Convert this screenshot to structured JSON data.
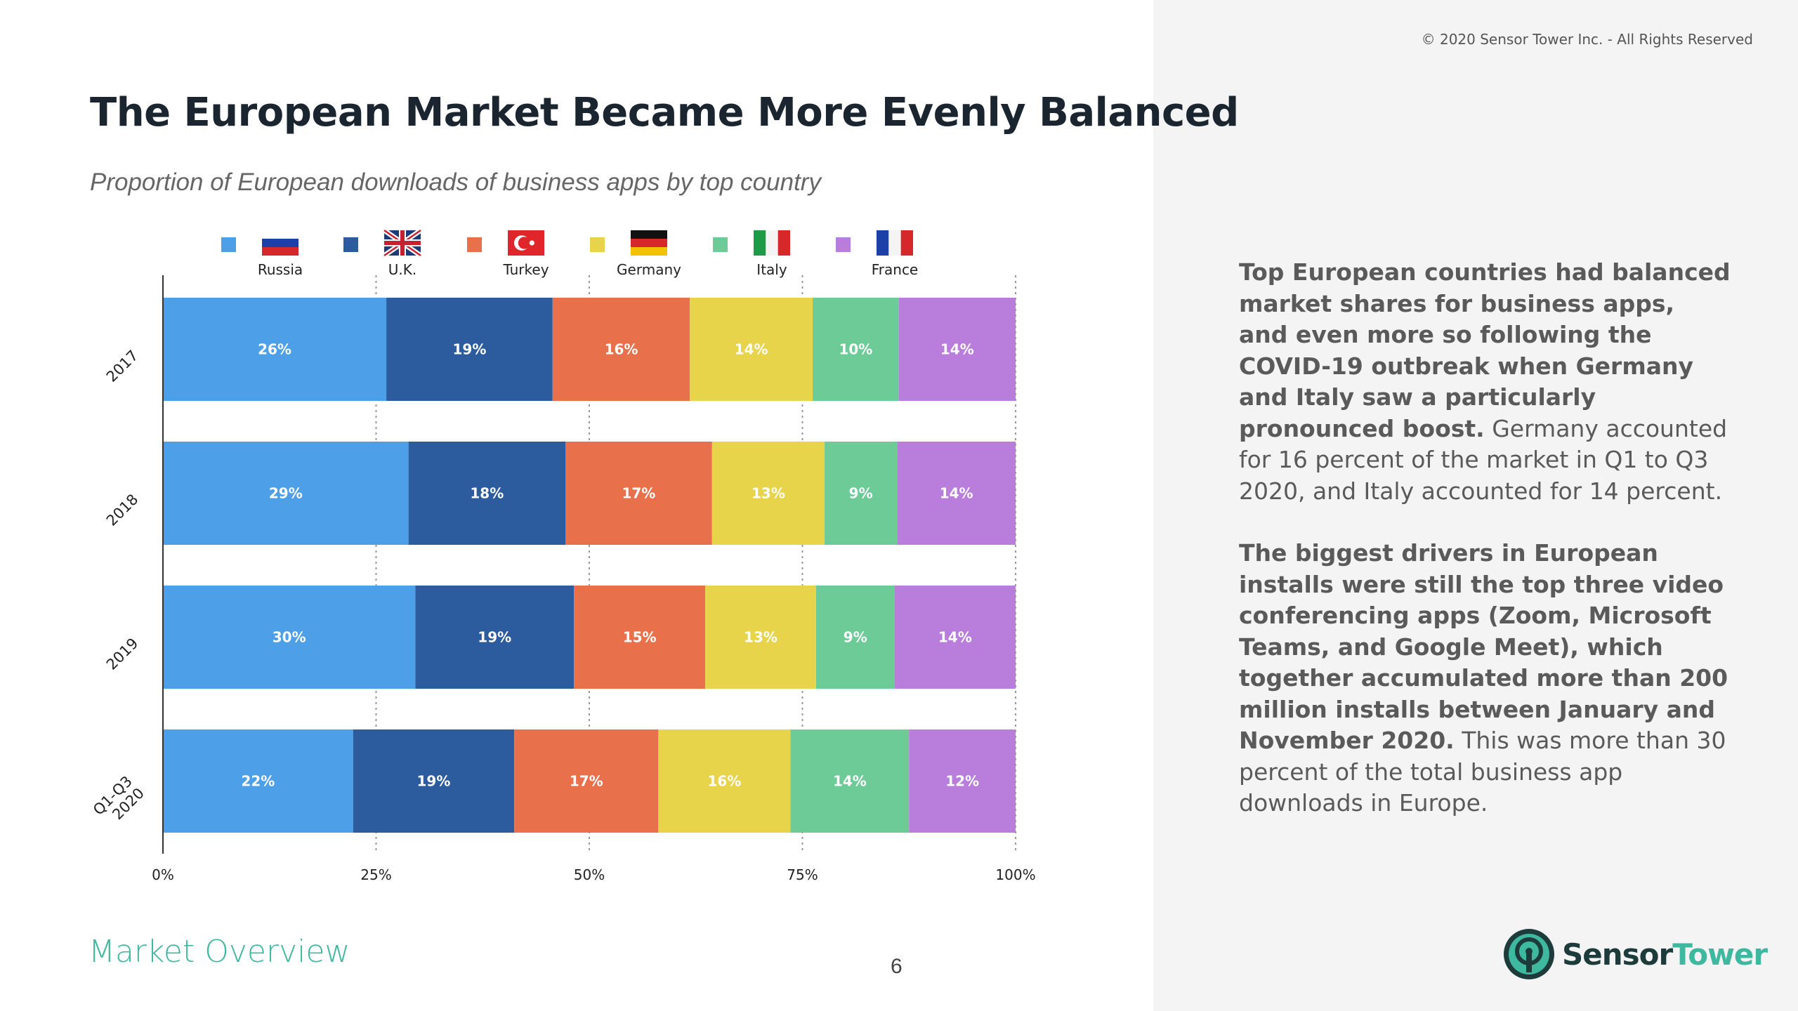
{
  "copyright": "© 2020 Sensor Tower Inc. - All Rights Reserved",
  "title": "The European Market Became More Evenly Balanced",
  "subtitle": "Proportion of European downloads of business apps by top country",
  "legend": [
    {
      "name": "Russia",
      "color": "#4d9fe8",
      "flag": "russia-flag-icon"
    },
    {
      "name": "U.K.",
      "color": "#2c5c9e",
      "flag": "uk-flag-icon"
    },
    {
      "name": "Turkey",
      "color": "#e8704b",
      "flag": "turkey-flag-icon"
    },
    {
      "name": "Germany",
      "color": "#e8d44b",
      "flag": "germany-flag-icon"
    },
    {
      "name": "Italy",
      "color": "#6ccb97",
      "flag": "italy-flag-icon"
    },
    {
      "name": "France",
      "color": "#b97ddb",
      "flag": "france-flag-icon"
    }
  ],
  "chart_data": {
    "type": "bar",
    "orientation": "horizontal",
    "stacked": true,
    "categories": [
      "2017",
      "2018",
      "2019",
      "Q1-Q3\n2020"
    ],
    "series": [
      {
        "name": "Russia",
        "values": [
          26,
          29,
          30,
          22
        ]
      },
      {
        "name": "U.K.",
        "values": [
          19,
          18,
          19,
          19
        ]
      },
      {
        "name": "Turkey",
        "values": [
          16,
          17,
          15,
          17
        ]
      },
      {
        "name": "Germany",
        "values": [
          14,
          13,
          13,
          16
        ]
      },
      {
        "name": "Italy",
        "values": [
          10,
          9,
          9,
          14
        ]
      },
      {
        "name": "France",
        "values": [
          14,
          14,
          14,
          12
        ]
      }
    ],
    "segment_bounds": [
      [
        0,
        26.2,
        45.7,
        61.8,
        76.2,
        86.3,
        100
      ],
      [
        0,
        28.8,
        47.2,
        64.4,
        77.6,
        86.1,
        100
      ],
      [
        0,
        29.6,
        48.2,
        63.6,
        76.6,
        85.8,
        100
      ],
      [
        0,
        22.3,
        41.2,
        58.1,
        73.6,
        87.5,
        100
      ]
    ],
    "xticks": [
      "0%",
      "25%",
      "50%",
      "75%",
      "100%"
    ],
    "xlim": [
      0,
      100
    ],
    "xlabel": "",
    "ylabel": "",
    "legend_position": "top"
  },
  "panel": {
    "p1_bold": "Top European countries had balanced market shares for business apps, and even more so following the COVID-19 outbreak when Germany and Italy saw a particularly pronounced boost.",
    "p1_rest": " Germany accounted for 16 percent of the market in Q1 to Q3 2020, and Italy accounted for 14 percent.",
    "p2_bold": "The biggest drivers in European installs were still the top three video conferencing apps (Zoom, Microsoft Teams, and Google Meet), which together accumulated more than 200 million installs between January and November 2020.",
    "p2_rest": " This was more than 30 percent of the total business app downloads in Europe."
  },
  "footer": {
    "section": "Market Overview",
    "page": "6",
    "logo_part1": "Sensor",
    "logo_part2": "Tower"
  }
}
